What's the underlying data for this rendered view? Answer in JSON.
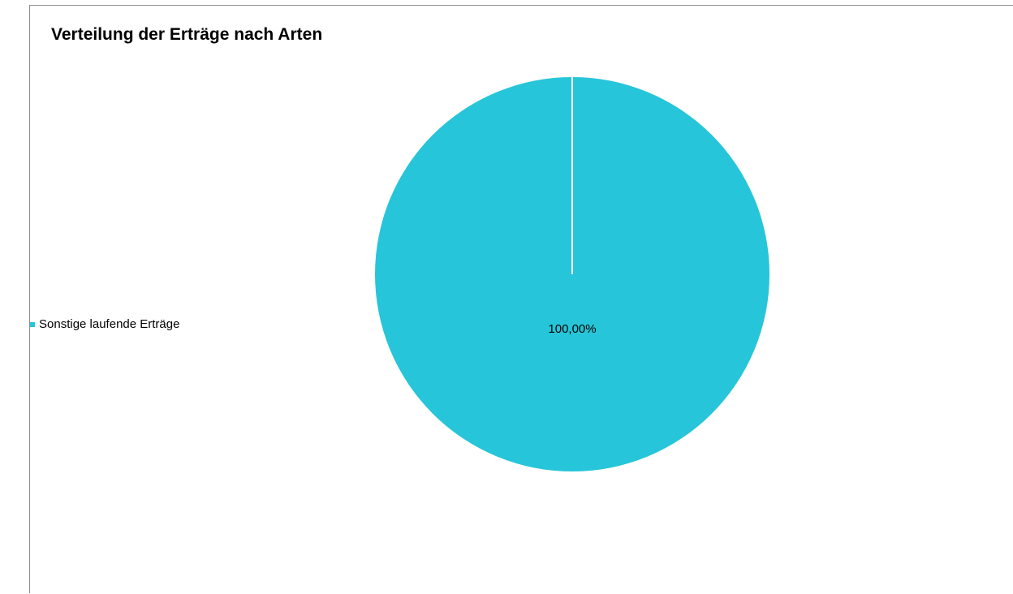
{
  "chart_data": {
    "type": "pie",
    "title": "Verteilung der Erträge nach Arten",
    "categories": [
      "Sonstige laufende Erträge"
    ],
    "values": [
      100.0
    ],
    "data_labels": [
      "100,00%"
    ],
    "colors": [
      "#26c5d9"
    ],
    "legend_position": "left"
  }
}
